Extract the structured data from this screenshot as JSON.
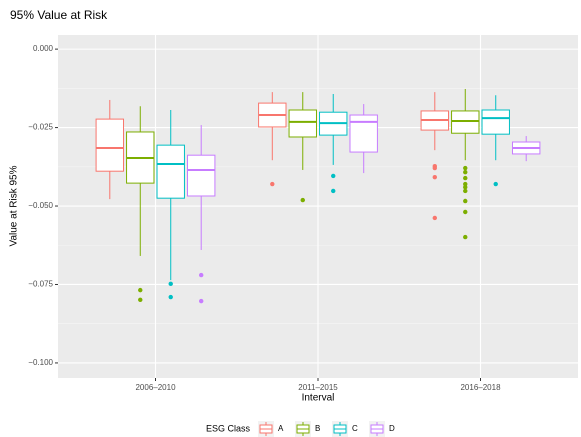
{
  "chart_data": {
    "type": "boxplot",
    "title": "95% Value at Risk",
    "x_label": "Interval",
    "y_label": "Value at Risk 95%",
    "categories": [
      "2006–2010",
      "2011–2015",
      "2016–2018"
    ],
    "legend_title": "ESG Class",
    "legend_position": "bottom",
    "ylim": [
      -0.1048,
      0.0045
    ],
    "yticks": [
      {
        "value": 0,
        "label": "0.000"
      },
      {
        "value": -0.025,
        "label": "−0.025"
      },
      {
        "value": -0.05,
        "label": "−0.050"
      },
      {
        "value": -0.075,
        "label": "−0.075"
      },
      {
        "value": -0.1,
        "label": "−0.100"
      }
    ],
    "grid": true,
    "series": [
      {
        "name": "A",
        "color": "#F8766D",
        "boxes": [
          {
            "min": -0.0478,
            "q1": -0.0389,
            "median": -0.0315,
            "q3": -0.0223,
            "max": -0.0162,
            "outliers": []
          },
          {
            "min": -0.0354,
            "q1": -0.0248,
            "median": -0.021,
            "q3": -0.0172,
            "max": -0.0137,
            "outliers": [
              -0.043
            ]
          },
          {
            "min": -0.0322,
            "q1": -0.0258,
            "median": -0.0226,
            "q3": -0.0197,
            "max": -0.0137,
            "outliers": [
              -0.0373,
              -0.0379,
              -0.0408,
              -0.0538
            ]
          }
        ]
      },
      {
        "name": "B",
        "color": "#7CAE00",
        "boxes": [
          {
            "min": -0.0659,
            "q1": -0.0427,
            "median": -0.0347,
            "q3": -0.0264,
            "max": -0.0182,
            "outliers": [
              -0.0768,
              -0.0799
            ]
          },
          {
            "min": -0.0385,
            "q1": -0.028,
            "median": -0.0232,
            "q3": -0.0194,
            "max": -0.0137,
            "outliers": [
              -0.0481
            ]
          },
          {
            "min": -0.0354,
            "q1": -0.0268,
            "median": -0.0229,
            "q3": -0.0197,
            "max": -0.0127,
            "outliers": [
              -0.0379,
              -0.0392,
              -0.0411,
              -0.043,
              -0.044,
              -0.0452,
              -0.0484,
              -0.0519,
              -0.0599
            ]
          }
        ]
      },
      {
        "name": "C",
        "color": "#00BFC4",
        "boxes": [
          {
            "min": -0.0736,
            "q1": -0.0475,
            "median": -0.0366,
            "q3": -0.0306,
            "max": -0.0194,
            "outliers": [
              -0.0748,
              -0.079
            ]
          },
          {
            "min": -0.0369,
            "q1": -0.0274,
            "median": -0.0236,
            "q3": -0.0201,
            "max": -0.0143,
            "outliers": [
              -0.0404,
              -0.0452
            ]
          },
          {
            "min": -0.0354,
            "q1": -0.0271,
            "median": -0.022,
            "q3": -0.0194,
            "max": -0.0147,
            "outliers": [
              -0.043
            ]
          }
        ]
      },
      {
        "name": "D",
        "color": "#C77CFF",
        "boxes": [
          {
            "min": -0.064,
            "q1": -0.0468,
            "median": -0.0385,
            "q3": -0.0338,
            "max": -0.0242,
            "outliers": [
              -0.072,
              -0.0803
            ]
          },
          {
            "min": -0.0395,
            "q1": -0.0328,
            "median": -0.0232,
            "q3": -0.021,
            "max": -0.0175,
            "outliers": []
          },
          {
            "min": -0.0357,
            "q1": -0.0334,
            "median": -0.0315,
            "q3": -0.0296,
            "max": -0.0277,
            "outliers": []
          }
        ]
      }
    ]
  }
}
